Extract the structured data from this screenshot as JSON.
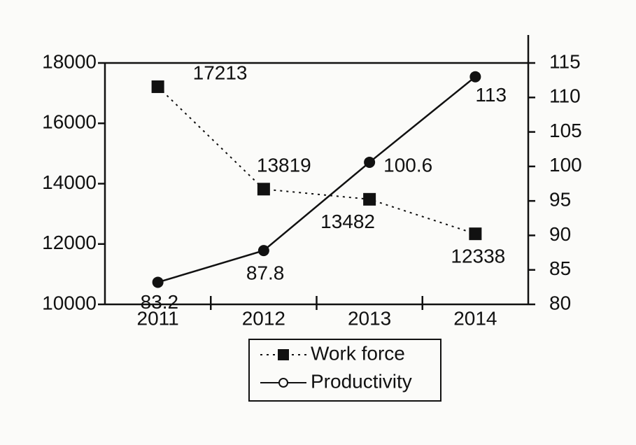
{
  "chart_data": {
    "type": "line",
    "categories": [
      "2011",
      "2012",
      "2013",
      "2014"
    ],
    "series": [
      {
        "name": "Work force",
        "color": "#111111",
        "line_style": "dotted",
        "marker": "square",
        "axis": "y",
        "values": [
          17213,
          13819,
          13482,
          12338
        ]
      },
      {
        "name": "Productivity",
        "color": "#111111",
        "line_style": "solid",
        "marker": "circle",
        "axis": "y2",
        "values": [
          83.2,
          87.8,
          100.6,
          113
        ]
      }
    ],
    "ylim": [
      10000,
      18000
    ],
    "yticks": [
      10000,
      12000,
      14000,
      16000,
      18000
    ],
    "y2lim": [
      80,
      115
    ],
    "y2ticks": [
      80,
      85,
      90,
      95,
      100,
      105,
      110,
      115
    ],
    "data_labels": true,
    "legend": "bottom"
  }
}
